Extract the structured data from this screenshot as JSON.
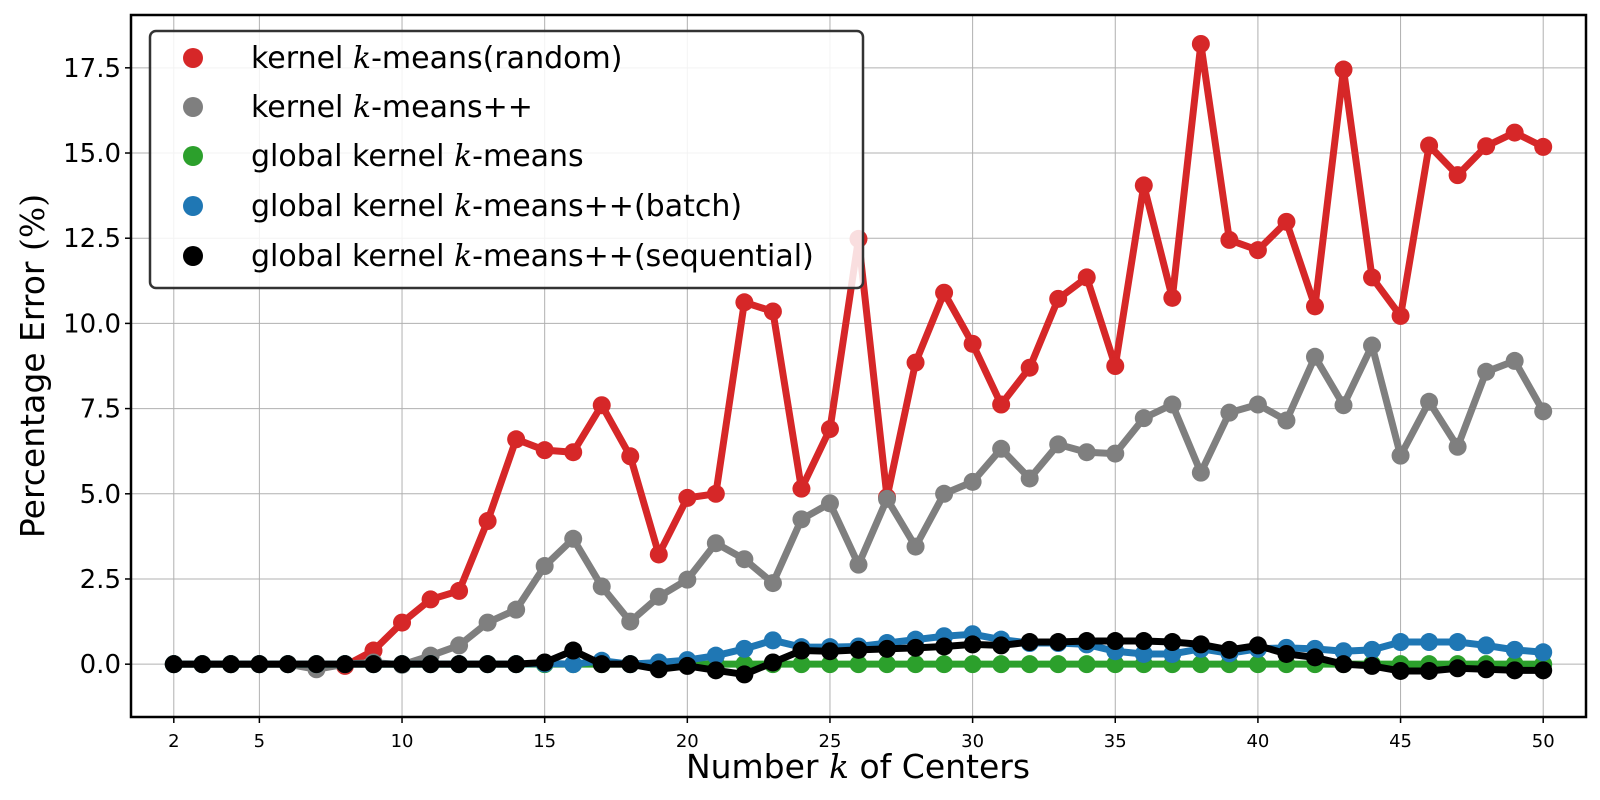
{
  "chart_data": {
    "type": "line",
    "xlabel": "Number k of Centers",
    "ylabel": "Percentage Error (%)",
    "xlim": [
      0.5,
      51.5
    ],
    "ylim": [
      -1.55,
      19.05
    ],
    "xticks": [
      2,
      5,
      10,
      15,
      20,
      25,
      30,
      35,
      40,
      45,
      50
    ],
    "yticks": [
      0.0,
      2.5,
      5.0,
      7.5,
      10.0,
      12.5,
      15.0,
      17.5
    ],
    "ytick_labels": [
      "0.0",
      "2.5",
      "5.0",
      "7.5",
      "10.0",
      "12.5",
      "15.0",
      "17.5"
    ],
    "grid": true,
    "legend_position": "top-left",
    "x": [
      2,
      3,
      4,
      5,
      6,
      7,
      8,
      9,
      10,
      11,
      12,
      13,
      14,
      15,
      16,
      17,
      18,
      19,
      20,
      21,
      22,
      23,
      24,
      25,
      26,
      27,
      28,
      29,
      30,
      31,
      32,
      33,
      34,
      35,
      36,
      37,
      38,
      39,
      40,
      41,
      42,
      43,
      44,
      45,
      46,
      47,
      48,
      49,
      50
    ],
    "series": [
      {
        "name": "kernel k-means(random)",
        "color": "#d62728",
        "values": [
          0,
          0,
          0,
          0,
          0,
          0,
          -0.05,
          0.4,
          1.22,
          1.9,
          2.15,
          4.2,
          6.6,
          6.28,
          6.22,
          7.6,
          6.1,
          3.22,
          4.88,
          5.0,
          10.62,
          10.35,
          5.15,
          6.9,
          12.48,
          4.9,
          8.85,
          10.9,
          9.4,
          7.62,
          8.7,
          10.72,
          11.35,
          8.75,
          14.05,
          10.75,
          18.2,
          12.45,
          12.15,
          12.98,
          10.5,
          17.45,
          11.35,
          10.22,
          15.22,
          14.35,
          15.2,
          15.6,
          15.18
        ]
      },
      {
        "name": "kernel k-means++",
        "color": "#7f7f7f",
        "values": [
          0,
          0,
          0,
          0,
          0,
          -0.15,
          0,
          0.05,
          -0.02,
          0.25,
          0.55,
          1.22,
          1.6,
          2.88,
          3.68,
          2.28,
          1.25,
          1.98,
          2.48,
          3.55,
          3.08,
          2.38,
          4.25,
          4.72,
          2.92,
          4.85,
          3.45,
          5.0,
          5.35,
          6.32,
          5.45,
          6.45,
          6.22,
          6.18,
          7.22,
          7.62,
          5.62,
          7.38,
          7.62,
          7.15,
          9.02,
          7.6,
          9.35,
          6.12,
          7.7,
          6.38,
          8.58,
          8.9,
          7.42
        ]
      },
      {
        "name": "global kernel k-means",
        "color": "#2ca02c",
        "values": [
          0,
          0,
          0,
          0,
          0,
          0,
          0,
          0,
          0,
          0,
          0,
          0,
          0,
          0,
          0,
          0,
          0,
          0,
          0,
          0,
          0,
          0,
          0,
          0,
          0,
          0,
          0,
          0,
          0,
          0,
          0,
          0,
          0,
          0,
          0,
          0,
          0,
          0,
          0,
          0,
          0,
          0,
          0,
          0,
          0,
          0,
          0,
          0,
          0
        ]
      },
      {
        "name": "global kernel k-means++(batch)",
        "color": "#1f77b4",
        "values": [
          0,
          0,
          0,
          0,
          0,
          0,
          0,
          0,
          0,
          0,
          0,
          0,
          0,
          0.02,
          0,
          0.1,
          0,
          0.05,
          0.12,
          0.25,
          0.45,
          0.7,
          0.5,
          0.5,
          0.52,
          0.62,
          0.72,
          0.82,
          0.88,
          0.72,
          0.62,
          0.62,
          0.58,
          0.38,
          0.3,
          0.3,
          0.45,
          0.32,
          0.45,
          0.48,
          0.45,
          0.38,
          0.42,
          0.65,
          0.65,
          0.65,
          0.55,
          0.42,
          0.35
        ]
      },
      {
        "name": "global kernel k-means++(sequential)",
        "color": "#000000",
        "values": [
          0,
          0,
          0,
          0,
          0,
          0,
          0,
          0,
          0,
          0,
          0,
          0,
          0,
          0.05,
          0.4,
          0,
          0,
          -0.15,
          -0.05,
          -0.18,
          -0.3,
          0.05,
          0.4,
          0.38,
          0.42,
          0.45,
          0.48,
          0.52,
          0.58,
          0.55,
          0.65,
          0.65,
          0.68,
          0.68,
          0.68,
          0.65,
          0.58,
          0.42,
          0.55,
          0.3,
          0.2,
          0,
          -0.05,
          -0.2,
          -0.2,
          -0.12,
          -0.15,
          -0.18,
          -0.18
        ]
      }
    ]
  },
  "legend": {
    "entries": [
      {
        "prefix": "kernel ",
        "k": "k",
        "suffix": "-means(random)",
        "color": "#d62728"
      },
      {
        "prefix": "kernel ",
        "k": "k",
        "suffix": "-means++",
        "color": "#7f7f7f"
      },
      {
        "prefix": "global kernel ",
        "k": "k",
        "suffix": "-means",
        "color": "#2ca02c"
      },
      {
        "prefix": "global kernel ",
        "k": "k",
        "suffix": "-means++(batch)",
        "color": "#1f77b4"
      },
      {
        "prefix": "global kernel ",
        "k": "k",
        "suffix": "-means++(sequential)",
        "color": "#000000"
      }
    ]
  },
  "axis_text": {
    "ylabel_prefix": "Percentage Error ",
    "ylabel_unit": "(%)",
    "xlabel_prefix": "Number ",
    "xlabel_k": "k",
    "xlabel_suffix": " of Centers"
  }
}
